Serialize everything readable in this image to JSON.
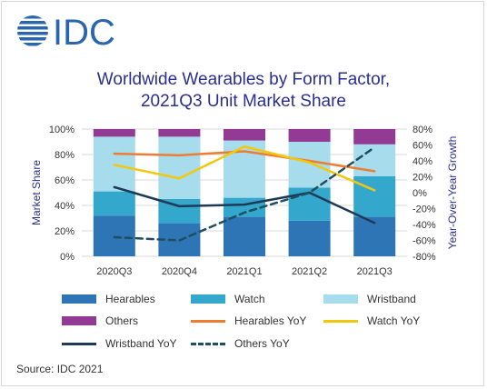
{
  "logo": {
    "text": "IDC",
    "color": "#2a66b0",
    "icon": "globe-icon"
  },
  "title_lines": [
    "Worldwide Wearables by Form Factor,",
    "2021Q3 Unit Market Share"
  ],
  "source": "Source: IDC 2021",
  "chart_data": {
    "type": "bar",
    "stacked": true,
    "categories": [
      "2020Q3",
      "2020Q4",
      "2021Q1",
      "2021Q2",
      "2021Q3"
    ],
    "ylabel": "Market Share",
    "ylabel_right": "Year-Over-Year  Growth",
    "ylim": [
      0,
      100
    ],
    "yticks": [
      "0%",
      "20%",
      "40%",
      "60%",
      "80%",
      "100%"
    ],
    "ylim_right": [
      -80,
      80
    ],
    "yticks_right": [
      "-80%",
      "-60%",
      "-40%",
      "-20%",
      "0%",
      "20%",
      "40%",
      "60%",
      "80%"
    ],
    "bar_series": [
      {
        "name": "Hearables",
        "color": "#2e75b6",
        "values": [
          32,
          26,
          31,
          28,
          31
        ]
      },
      {
        "name": "Watch",
        "color": "#33a7cc",
        "values": [
          19,
          19,
          15,
          26,
          32
        ]
      },
      {
        "name": "Wristband",
        "color": "#a7dcec",
        "values": [
          43,
          49,
          45,
          36,
          25
        ]
      },
      {
        "name": "Others",
        "color": "#933a94",
        "values": [
          6,
          6,
          9,
          10,
          12
        ]
      }
    ],
    "line_series": [
      {
        "name": "Hearables YoY",
        "color": "#ed7d31",
        "dash": false,
        "values": [
          49,
          47,
          52,
          40,
          27
        ]
      },
      {
        "name": "Watch YoY",
        "color": "#f2c80f",
        "dash": false,
        "values": [
          35,
          18,
          58,
          38,
          3
        ]
      },
      {
        "name": "Wristband YoY",
        "color": "#1f3a56",
        "dash": false,
        "values": [
          7,
          -17,
          -15,
          0,
          -38
        ]
      },
      {
        "name": "Others YoY",
        "color": "#1f4e5e",
        "dash": true,
        "values": [
          -56,
          -60,
          -25,
          0,
          57
        ]
      }
    ]
  }
}
